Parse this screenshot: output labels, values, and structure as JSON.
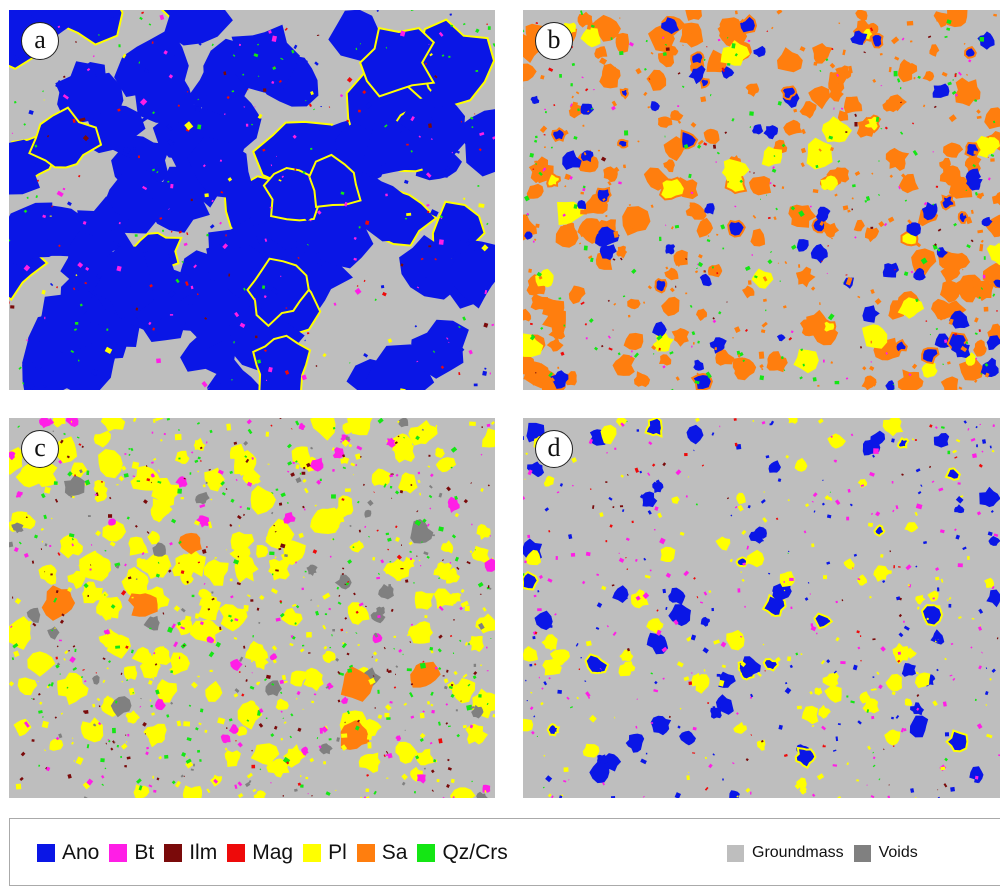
{
  "panels": [
    {
      "id": "a",
      "label": "a",
      "dominant": "Ano"
    },
    {
      "id": "b",
      "label": "b",
      "dominant": "Sa"
    },
    {
      "id": "c",
      "label": "c",
      "dominant": "Pl"
    },
    {
      "id": "d",
      "label": "d",
      "dominant": "Ano"
    }
  ],
  "legend": {
    "minerals": [
      {
        "label": "Ano",
        "color": "#0a16e6"
      },
      {
        "label": "Bt",
        "color": "#ff1ee6"
      },
      {
        "label": "Ilm",
        "color": "#7a0a0a"
      },
      {
        "label": "Mag",
        "color": "#ee0a0a"
      },
      {
        "label": "Pl",
        "color": "#ffff00"
      },
      {
        "label": "Sa",
        "color": "#ff7e0e"
      },
      {
        "label": "Qz/Crs",
        "color": "#14e614"
      }
    ],
    "background": [
      {
        "label": "Groundmass",
        "color": "#bebebe"
      },
      {
        "label": "Voids",
        "color": "#808080"
      }
    ]
  }
}
